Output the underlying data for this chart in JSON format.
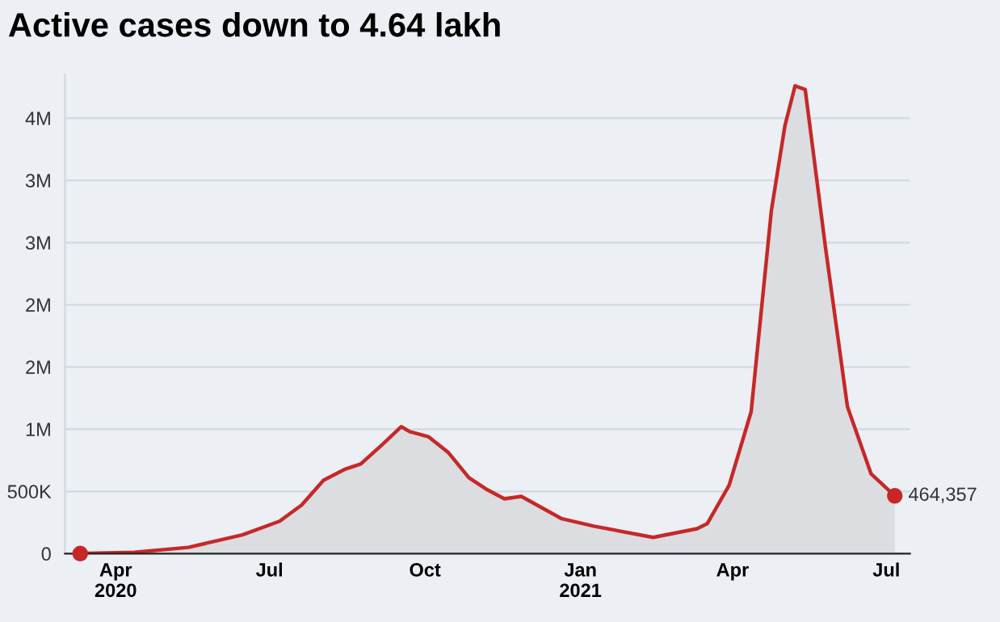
{
  "chart_data": {
    "type": "area",
    "title": "Active cases down to 4.64 lakh",
    "x": [
      "2020-03-11",
      "2020-04-12",
      "2020-05-14",
      "2020-06-15",
      "2020-07-07",
      "2020-07-20",
      "2020-08-02",
      "2020-08-15",
      "2020-08-24",
      "2020-09-06",
      "2020-09-17",
      "2020-09-22",
      "2020-10-03",
      "2020-10-15",
      "2020-10-27",
      "2020-11-06",
      "2020-11-17",
      "2020-11-27",
      "2020-12-21",
      "2021-01-09",
      "2021-02-13",
      "2021-03-11",
      "2021-03-17",
      "2021-03-30",
      "2021-04-12",
      "2021-04-24",
      "2021-05-02",
      "2021-05-08",
      "2021-05-14",
      "2021-05-26",
      "2021-06-08",
      "2021-06-22",
      "2021-07-06"
    ],
    "series": [
      {
        "color": "#c62828",
        "values": [
          0,
          10000,
          50000,
          150000,
          260000,
          390000,
          590000,
          680000,
          720000,
          880000,
          1020000,
          980000,
          940000,
          810000,
          610000,
          520000,
          440000,
          460000,
          280000,
          220000,
          130000,
          200000,
          240000,
          550000,
          1140000,
          2760000,
          3440000,
          3760000,
          3730000,
          2460000,
          1180000,
          640000,
          464357
        ]
      },
      {
        "type": "scatter",
        "color": "#c62828",
        "x": [
          "2020-03-11",
          "2021-07-06"
        ],
        "values": [
          0,
          464357
        ]
      }
    ],
    "annotations": [
      {
        "text": "464,357",
        "x": "2021-07-06",
        "y": 464357
      }
    ],
    "xlim": [
      "2020-03-02",
      "2021-07-15"
    ],
    "xticks": [
      {
        "value": "2020-04-01",
        "label": "Apr\n2020"
      },
      {
        "value": "2020-07-01",
        "label": "Jul"
      },
      {
        "value": "2020-10-01",
        "label": "Oct"
      },
      {
        "value": "2021-01-01",
        "label": "Jan\n2021"
      },
      {
        "value": "2021-04-01",
        "label": "Apr"
      },
      {
        "value": "2021-07-01",
        "label": "Jul"
      }
    ],
    "ylim": [
      0,
      3850000
    ],
    "yticks": [
      0,
      {
        "value": 500000,
        "label": "500K"
      },
      {
        "value": 1000000,
        "label": "1M"
      },
      {
        "value": 1500000,
        "label": "2M"
      },
      {
        "value": 2000000,
        "label": "2M"
      },
      {
        "value": 2500000,
        "label": "3M"
      },
      {
        "value": 3000000,
        "label": "3M"
      },
      {
        "value": 3500000,
        "label": "4M"
      }
    ],
    "grid": "y"
  }
}
